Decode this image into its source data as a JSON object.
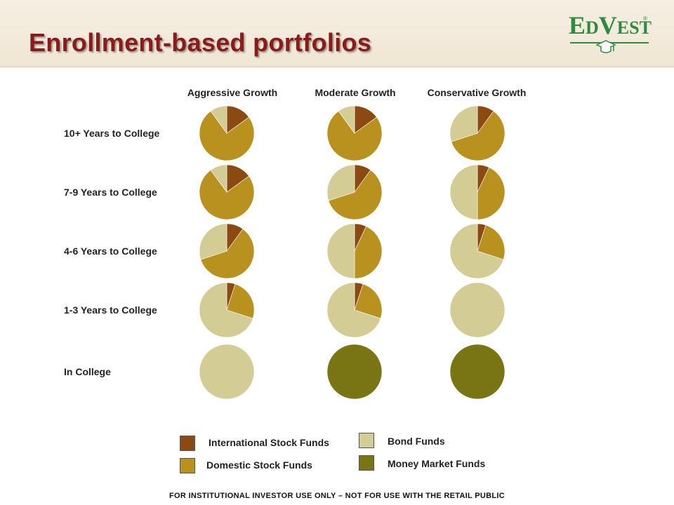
{
  "header": {
    "title": "Enrollment-based portfolios",
    "logo": {
      "prefix_big": "E",
      "prefix_small": "D",
      "suffix_big": "V",
      "suffix_small": "EST",
      "reg_mark": "®"
    }
  },
  "colors": {
    "international": "#8b4a12",
    "domestic": "#b8911f",
    "bond": "#d3cc95",
    "money_market": "#7a7514",
    "title": "#8b1a1a",
    "logo": "#2e8a3e"
  },
  "chart_data": {
    "type": "pie",
    "columns": [
      "Aggressive Growth",
      "Moderate Growth",
      "Conservative Growth"
    ],
    "rows": [
      "10+ Years to College",
      "7-9 Years to College",
      "4-6 Years to College",
      "1-3 Years to College",
      "In College"
    ],
    "series_names": [
      "International Stock Funds",
      "Domestic Stock Funds",
      "Bond Funds",
      "Money Market Funds"
    ],
    "allocations": [
      [
        [
          15,
          75,
          10,
          0
        ],
        [
          15,
          75,
          10,
          0
        ],
        [
          10,
          60,
          30,
          0
        ]
      ],
      [
        [
          15,
          75,
          10,
          0
        ],
        [
          10,
          60,
          30,
          0
        ],
        [
          7,
          43,
          50,
          0
        ]
      ],
      [
        [
          10,
          60,
          30,
          0
        ],
        [
          7,
          43,
          50,
          0
        ],
        [
          5,
          25,
          70,
          0
        ]
      ],
      [
        [
          5,
          25,
          70,
          0
        ],
        [
          5,
          25,
          70,
          0
        ],
        [
          0,
          0,
          100,
          0
        ]
      ],
      [
        [
          0,
          0,
          100,
          0
        ],
        [
          0,
          0,
          0,
          100
        ],
        [
          0,
          0,
          0,
          100
        ]
      ]
    ]
  },
  "legend": [
    {
      "label": "International Stock Funds",
      "color": "#8b4a12"
    },
    {
      "label": "Domestic Stock Funds",
      "color": "#b8911f"
    },
    {
      "label": "Bond Funds",
      "color": "#d3cc95"
    },
    {
      "label": "Money Market Funds",
      "color": "#7a7514"
    }
  ],
  "footer": "FOR INSTITUTIONAL INVESTOR USE ONLY – NOT FOR USE WITH THE RETAIL PUBLIC"
}
